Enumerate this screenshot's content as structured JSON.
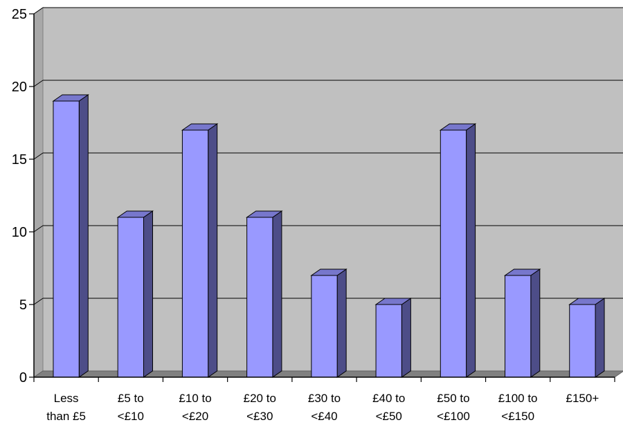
{
  "chart_data": {
    "type": "bar",
    "style": "3d-column",
    "categories": [
      [
        "Less",
        "than £5"
      ],
      [
        "£5 to",
        "<£10"
      ],
      [
        "£10 to",
        "<£20"
      ],
      [
        "£20 to",
        "<£30"
      ],
      [
        "£30 to",
        "<£40"
      ],
      [
        "£40 to",
        "<£50"
      ],
      [
        "£50 to",
        "<£100"
      ],
      [
        "£100 to",
        "<£150"
      ],
      [
        "£150+"
      ]
    ],
    "values": [
      19,
      11,
      17,
      11,
      7,
      5,
      17,
      7,
      5
    ],
    "ylim": [
      0,
      25
    ],
    "yticks": [
      0,
      5,
      10,
      15,
      20,
      25
    ],
    "grid": true,
    "legend": "none",
    "title": "",
    "xlabel": "",
    "ylabel": "",
    "colors": {
      "bar_front": "#9999ff",
      "bar_side": "#4d4d88",
      "bar_top": "#7777cc",
      "bar_edge": "#000000",
      "wall": "#c0c0c0",
      "wall_left": "#a8a8a8",
      "floor": "#808080",
      "gridline": "#000000"
    }
  }
}
